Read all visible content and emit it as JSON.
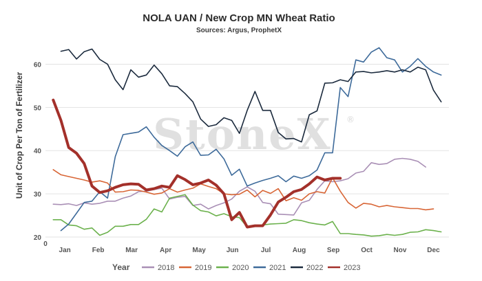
{
  "chart_data": {
    "type": "line",
    "title": "NOLA UAN / New Crop MN Wheat Ratio",
    "subtitle": "Sources: Argus, ProphetX",
    "ylabel": "Unit of Crop Per Ton of Fertilizer",
    "xlabel": "",
    "ylim": [
      20,
      65
    ],
    "yticks": [
      20,
      30,
      40,
      50,
      60
    ],
    "xlim": [
      0,
      52
    ],
    "month_labels": [
      "Jan",
      "Feb",
      "Mar",
      "Apr",
      "May",
      "Jun",
      "Jul",
      "Aug",
      "Sep",
      "Oct",
      "Nov",
      "Dec"
    ],
    "month_positions": [
      2.5,
      6.8,
      11.1,
      15.5,
      19.8,
      24.1,
      28.4,
      32.7,
      37.1,
      41.4,
      45.7,
      50.0
    ],
    "x_corner_label": "0",
    "grid": "horizontal",
    "legend_title": "Year",
    "legend_position": "bottom",
    "watermark": "StoneX",
    "watermark_symbol": "®",
    "series": [
      {
        "name": "2018",
        "color": "#a98fb5",
        "width": 1.6,
        "x": [
          1,
          2,
          3,
          4,
          5,
          6,
          7,
          8,
          9,
          10,
          11,
          12,
          13,
          14,
          15,
          16,
          17,
          18,
          19,
          20,
          21,
          22,
          23,
          24,
          25,
          26,
          27,
          28,
          29,
          30,
          31,
          32,
          33,
          34,
          35,
          36,
          37,
          38,
          39,
          40,
          41,
          42,
          43,
          44,
          45,
          46,
          47,
          48,
          49
        ],
        "values": [
          27.6,
          27.5,
          27.7,
          27.3,
          27.9,
          27.6,
          27.8,
          28.3,
          28.3,
          29.0,
          29.5,
          30.5,
          30.6,
          31.0,
          31.3,
          28.8,
          29.2,
          29.4,
          27.3,
          27.6,
          26.5,
          27.3,
          27.9,
          28.8,
          30.6,
          31.6,
          30.6,
          28.0,
          27.7,
          25.3,
          25.2,
          25.1,
          27.9,
          28.5,
          31.0,
          33.0,
          32.8,
          33.0,
          33.5,
          34.8,
          35.2,
          37.2,
          36.8,
          37.0,
          38.0,
          38.2,
          38.0,
          37.5,
          36.2
        ]
      },
      {
        "name": "2019",
        "color": "#d86535",
        "width": 1.6,
        "x": [
          1,
          2,
          3,
          4,
          5,
          6,
          7,
          8,
          9,
          10,
          11,
          12,
          13,
          14,
          15,
          16,
          17,
          18,
          19,
          20,
          21,
          22,
          23,
          24,
          25,
          26,
          27,
          28,
          29,
          30,
          31,
          32,
          33,
          34,
          35,
          36,
          37,
          38,
          39,
          40,
          41,
          42,
          43,
          44,
          45,
          46,
          47,
          48,
          49,
          50
        ],
        "values": [
          35.6,
          34.4,
          34.0,
          33.6,
          33.2,
          32.7,
          33.0,
          32.5,
          30.4,
          30.5,
          30.9,
          30.8,
          30.4,
          29.9,
          30.2,
          31.2,
          30.4,
          30.9,
          31.3,
          32.3,
          31.7,
          31.2,
          30.0,
          29.8,
          29.9,
          30.9,
          29.3,
          30.8,
          30.1,
          31.2,
          28.4,
          29.1,
          28.5,
          30.0,
          30.5,
          30.2,
          33.7,
          30.6,
          28.0,
          26.7,
          27.8,
          27.6,
          27.0,
          27.3,
          27.0,
          26.8,
          26.6,
          26.6,
          26.3,
          26.5
        ]
      },
      {
        "name": "2020",
        "color": "#6bb14c",
        "width": 1.6,
        "x": [
          1,
          2,
          3,
          4,
          5,
          6,
          7,
          8,
          9,
          10,
          11,
          12,
          13,
          14,
          15,
          16,
          17,
          18,
          19,
          20,
          21,
          22,
          23,
          24,
          25,
          26,
          27,
          28,
          29,
          30,
          31,
          32,
          33,
          34,
          35,
          36,
          37,
          38,
          39,
          40,
          41,
          42,
          43,
          44,
          45,
          46,
          47,
          48,
          49,
          50,
          51
        ],
        "values": [
          24.0,
          24.0,
          22.8,
          22.6,
          21.8,
          22.1,
          20.4,
          21.1,
          22.5,
          22.5,
          22.9,
          22.9,
          24.1,
          26.5,
          25.8,
          29.0,
          29.4,
          29.8,
          27.4,
          26.1,
          25.8,
          24.9,
          25.4,
          24.7,
          24.5,
          22.3,
          22.5,
          22.8,
          23.0,
          23.1,
          23.2,
          24.0,
          23.8,
          23.3,
          23.0,
          22.8,
          23.6,
          20.8,
          20.8,
          20.6,
          20.5,
          20.2,
          20.3,
          20.6,
          20.4,
          20.6,
          21.1,
          21.2,
          21.7,
          21.5,
          21.2
        ]
      },
      {
        "name": "2021",
        "color": "#3d6a9a",
        "width": 1.6,
        "x": [
          2,
          3,
          4,
          5,
          6,
          7,
          8,
          9,
          10,
          11,
          12,
          13,
          14,
          15,
          16,
          17,
          18,
          19,
          20,
          21,
          22,
          23,
          24,
          25,
          26,
          27,
          28,
          29,
          30,
          31,
          32,
          33,
          34,
          35,
          36,
          37,
          38,
          39,
          40,
          41,
          42,
          43,
          44,
          45,
          46,
          47,
          48,
          49,
          50,
          51
        ],
        "values": [
          21.5,
          23.0,
          25.5,
          28.0,
          28.3,
          30.5,
          29.0,
          38.6,
          43.7,
          44.0,
          44.3,
          45.5,
          43.1,
          41.2,
          40.0,
          38.7,
          40.9,
          42.0,
          38.9,
          39.0,
          40.3,
          38.1,
          34.3,
          35.7,
          31.8,
          32.5,
          33.1,
          33.6,
          34.2,
          32.8,
          34.1,
          33.6,
          34.2,
          35.5,
          39.5,
          39.5,
          54.6,
          52.5,
          61.0,
          60.5,
          62.8,
          63.8,
          61.5,
          61.0,
          58.2,
          59.5,
          61.3,
          59.5,
          58.2,
          57.5
        ]
      },
      {
        "name": "2022",
        "color": "#1b2a3d",
        "width": 1.6,
        "x": [
          2,
          3,
          4,
          5,
          6,
          7,
          8,
          9,
          10,
          11,
          12,
          13,
          14,
          15,
          16,
          17,
          18,
          19,
          20,
          21,
          22,
          23,
          24,
          25,
          26,
          27,
          28,
          29,
          30,
          31,
          32,
          33,
          34,
          35,
          36,
          37,
          38,
          39,
          40,
          41,
          42,
          43,
          44,
          45,
          46,
          47,
          48,
          49,
          50,
          51
        ],
        "values": [
          63.0,
          63.4,
          61.2,
          62.9,
          63.5,
          61.1,
          60.0,
          56.4,
          54.1,
          58.7,
          57.0,
          57.5,
          59.8,
          57.8,
          55.0,
          54.8,
          53.2,
          51.3,
          47.3,
          45.6,
          46.0,
          47.6,
          47.0,
          44.0,
          49.3,
          53.7,
          49.3,
          49.3,
          44.2,
          42.7,
          42.8,
          42.0,
          48.3,
          49.2,
          55.6,
          55.7,
          56.4,
          56.0,
          58.2,
          58.3,
          58.0,
          58.2,
          58.5,
          58.2,
          58.7,
          58.2,
          59.3,
          58.7,
          54.0,
          51.3
        ]
      },
      {
        "name": "2023",
        "color": "#a3302a",
        "width": 4,
        "x": [
          1,
          2,
          3,
          4,
          5,
          6,
          7,
          8,
          9,
          10,
          11,
          12,
          13,
          14,
          15,
          16,
          17,
          18,
          19,
          20,
          21,
          22,
          23,
          24,
          25,
          26,
          27,
          28,
          29,
          30,
          31,
          32,
          33,
          34,
          35,
          36,
          37,
          38
        ],
        "values": [
          51.7,
          47.0,
          40.7,
          39.4,
          37.0,
          31.8,
          30.3,
          30.7,
          31.5,
          32.1,
          32.3,
          32.2,
          30.9,
          31.2,
          31.8,
          31.5,
          34.2,
          33.3,
          32.1,
          32.5,
          33.2,
          32.0,
          30.0,
          24.0,
          25.7,
          22.3,
          22.6,
          22.6,
          25.1,
          28.1,
          29.2,
          30.5,
          31.0,
          32.3,
          33.9,
          33.2,
          33.6,
          33.6
        ]
      }
    ]
  }
}
